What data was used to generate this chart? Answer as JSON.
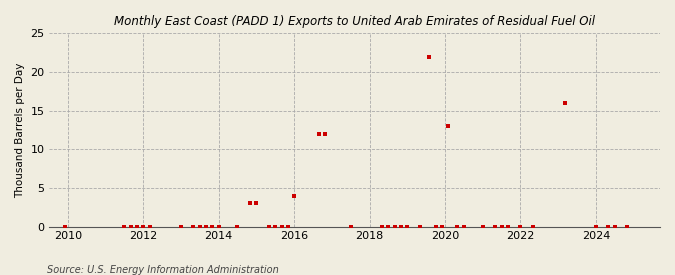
{
  "title": "Monthly East Coast (PADD 1) Exports to United Arab Emirates of Residual Fuel Oil",
  "ylabel": "Thousand Barrels per Day",
  "source": "Source: U.S. Energy Information Administration",
  "background_color": "#f0ede0",
  "plot_background_color": "#f0ede0",
  "marker_color": "#cc0000",
  "marker": "s",
  "marker_size": 3,
  "xlim": [
    2009.5,
    2025.7
  ],
  "ylim": [
    0,
    25
  ],
  "yticks": [
    0,
    5,
    10,
    15,
    20,
    25
  ],
  "xticks": [
    2010,
    2012,
    2014,
    2016,
    2018,
    2020,
    2022,
    2024
  ],
  "data_points": [
    [
      2009.92,
      0
    ],
    [
      2011.5,
      0
    ],
    [
      2011.67,
      0
    ],
    [
      2011.83,
      0
    ],
    [
      2012.0,
      0
    ],
    [
      2012.17,
      0
    ],
    [
      2013.0,
      0
    ],
    [
      2013.33,
      0
    ],
    [
      2013.5,
      0
    ],
    [
      2013.67,
      0
    ],
    [
      2013.83,
      0
    ],
    [
      2014.0,
      0
    ],
    [
      2014.5,
      0
    ],
    [
      2014.83,
      3.0
    ],
    [
      2015.0,
      3.0
    ],
    [
      2015.33,
      0
    ],
    [
      2015.5,
      0
    ],
    [
      2015.67,
      0
    ],
    [
      2015.83,
      0
    ],
    [
      2016.0,
      4.0
    ],
    [
      2016.67,
      12.0
    ],
    [
      2016.83,
      12.0
    ],
    [
      2017.5,
      0
    ],
    [
      2018.33,
      0
    ],
    [
      2018.5,
      0
    ],
    [
      2018.67,
      0
    ],
    [
      2018.83,
      0
    ],
    [
      2019.0,
      0
    ],
    [
      2019.33,
      0
    ],
    [
      2019.58,
      22.0
    ],
    [
      2019.75,
      0
    ],
    [
      2019.92,
      0
    ],
    [
      2020.08,
      13.0
    ],
    [
      2020.33,
      0
    ],
    [
      2020.5,
      0
    ],
    [
      2021.0,
      0
    ],
    [
      2021.33,
      0
    ],
    [
      2021.5,
      0
    ],
    [
      2021.67,
      0
    ],
    [
      2022.0,
      0
    ],
    [
      2022.33,
      0
    ],
    [
      2023.17,
      16.0
    ],
    [
      2024.0,
      0
    ],
    [
      2024.33,
      0
    ],
    [
      2024.5,
      0
    ],
    [
      2024.83,
      0
    ]
  ]
}
